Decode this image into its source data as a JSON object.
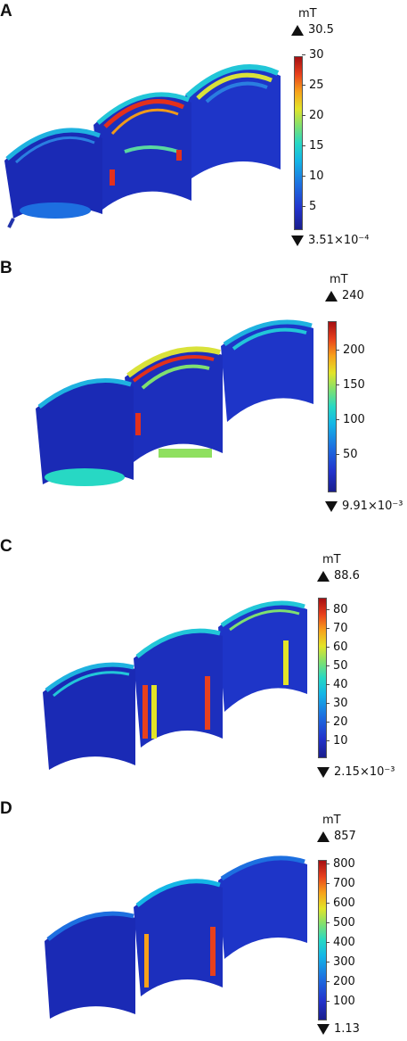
{
  "panels": [
    {
      "id": "A",
      "label": "A",
      "unit": "mT",
      "max": "30.5",
      "min": "3.51×10⁻⁴",
      "ticks": [
        "30",
        "25",
        "20",
        "15",
        "10",
        "5"
      ]
    },
    {
      "id": "B",
      "label": "B",
      "unit": "mT",
      "max": "240",
      "min": "9.91×10⁻³",
      "ticks": [
        "200",
        "150",
        "100",
        "50"
      ]
    },
    {
      "id": "C",
      "label": "C",
      "unit": "mT",
      "max": "88.6",
      "min": "2.15×10⁻³",
      "ticks": [
        "80",
        "70",
        "60",
        "50",
        "40",
        "30",
        "20",
        "10"
      ]
    },
    {
      "id": "D",
      "label": "D",
      "unit": "mT",
      "max": "857",
      "min": "1.13",
      "ticks": [
        "800",
        "700",
        "600",
        "500",
        "400",
        "300",
        "200",
        "100"
      ]
    }
  ],
  "colormap": [
    "#1a1e8c",
    "#2233cc",
    "#1d6fe0",
    "#14b6e6",
    "#27d8c4",
    "#7fe070",
    "#e3e428",
    "#f7a11a",
    "#e8401c",
    "#a50f12"
  ]
}
